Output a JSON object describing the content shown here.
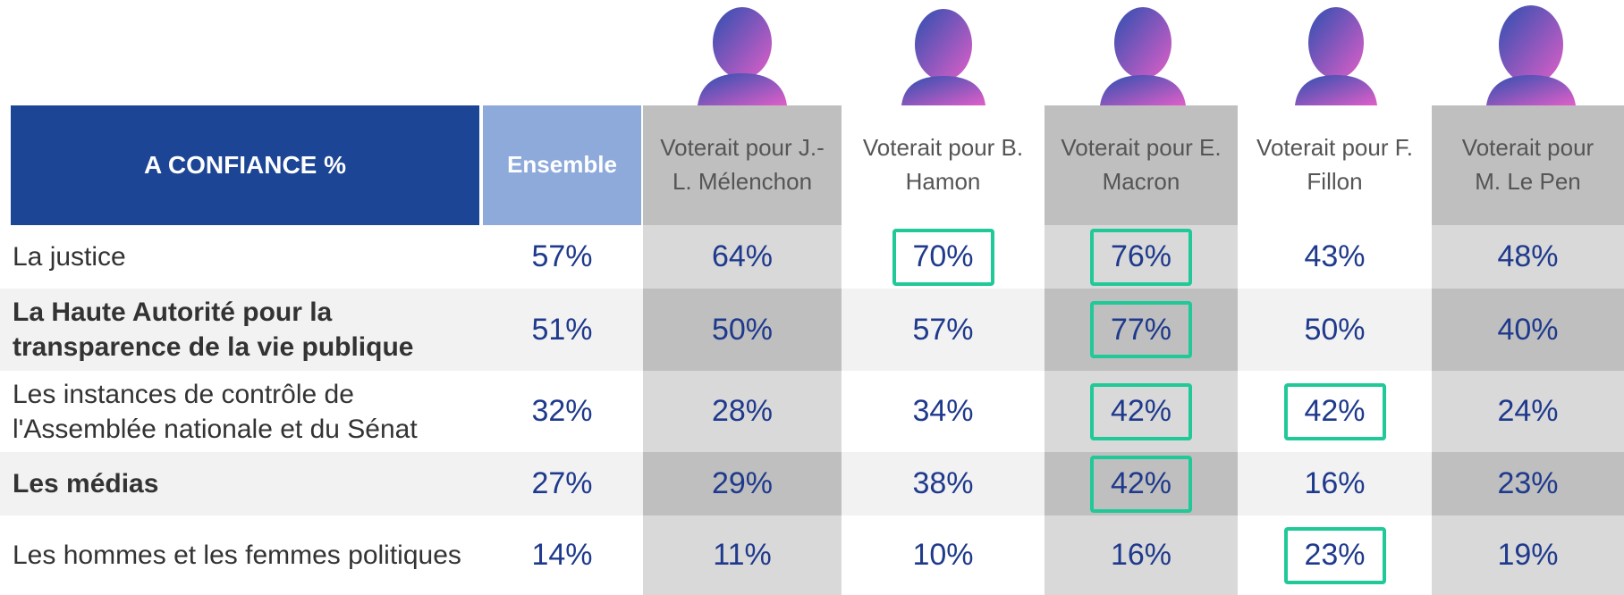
{
  "header": {
    "title": "A CONFIANCE %"
  },
  "table": {
    "columns": [
      {
        "label": "Ensemble",
        "shaded": false
      },
      {
        "label": "Voterait pour J.-L. Mélenchon",
        "shaded": true
      },
      {
        "label": "Voterait pour B. Hamon",
        "shaded": false
      },
      {
        "label": "Voterait pour E. Macron",
        "shaded": true
      },
      {
        "label": "Voterait pour F. Fillon",
        "shaded": false
      },
      {
        "label": "Voterait pour M. Le Pen",
        "shaded": true
      }
    ],
    "rows": [
      {
        "label": "La justice",
        "bold": false,
        "cells": [
          "57%",
          "64%",
          "70%",
          "76%",
          "43%",
          "48%"
        ],
        "highlighted": [
          false,
          false,
          true,
          true,
          false,
          false
        ]
      },
      {
        "label": "La Haute Autorité pour la transparence de la vie publique",
        "bold": true,
        "cells": [
          "51%",
          "50%",
          "57%",
          "77%",
          "50%",
          "40%"
        ],
        "highlighted": [
          false,
          false,
          false,
          true,
          false,
          false
        ]
      },
      {
        "label": "Les instances de contrôle de l'Assemblée nationale et du Sénat",
        "bold": false,
        "cells": [
          "32%",
          "28%",
          "34%",
          "42%",
          "42%",
          "24%"
        ],
        "highlighted": [
          false,
          false,
          false,
          true,
          true,
          false
        ]
      },
      {
        "label": "Les médias",
        "bold": true,
        "cells": [
          "27%",
          "29%",
          "38%",
          "42%",
          "16%",
          "23%"
        ],
        "highlighted": [
          false,
          false,
          false,
          true,
          false,
          false
        ]
      },
      {
        "label": "Les hommes et les femmes politiques",
        "bold": false,
        "cells": [
          "14%",
          "11%",
          "10%",
          "16%",
          "23%",
          "19%"
        ],
        "highlighted": [
          false,
          false,
          false,
          false,
          true,
          false
        ]
      }
    ]
  }
}
